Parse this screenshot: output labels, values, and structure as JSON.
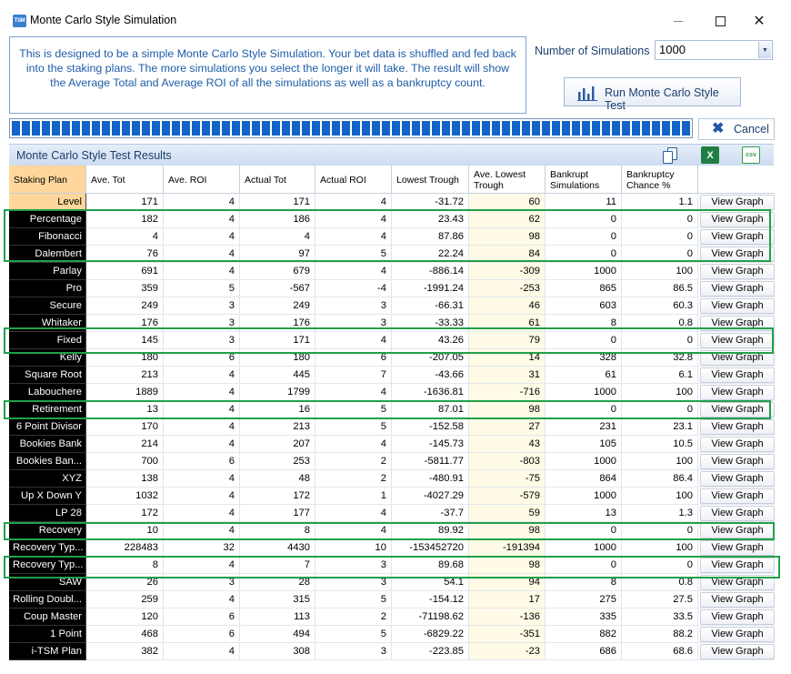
{
  "window": {
    "title": "Monte Carlo Style Simulation",
    "app_icon_text": "TSM",
    "minimize_icon": "minimize-icon",
    "maximize_icon": "maximize-icon",
    "close_glyph": "✕"
  },
  "description": "This is designed to be a simple Monte Carlo Style Simulation. Your bet data is shuffled and fed back into the staking plans. The more simulations you select the longer it will take.  The result will show the Average Total and Average ROI of all the simulations as well as a bankruptcy count.",
  "simulations": {
    "label": "Number of Simulations",
    "value": "1000",
    "arrow_glyph": "▼"
  },
  "run_button": {
    "label": "Run Monte Carlo Style Test",
    "icon": "bar-chart-icon"
  },
  "progress": {
    "fraction": 1.0
  },
  "cancel_button": {
    "label": "Cancel",
    "glyph": "✖"
  },
  "results": {
    "title": "Monte Carlo Style Test Results",
    "icons": [
      "copy-icon",
      "excel-export-icon",
      "csv-export-icon"
    ],
    "excel_glyph": "X",
    "csv_glyph": "csv"
  },
  "columns": [
    "Staking Plan",
    "Ave. Tot",
    "Ave. ROI",
    "Actual Tot",
    "Actual ROI",
    "Lowest Trough",
    "Ave. Lowest Trough",
    "Bankrupt Simulations",
    "Bankruptcy Chance %",
    ""
  ],
  "view_graph_label": "View Graph",
  "rows": [
    [
      "Level",
      "171",
      "4",
      "171",
      "4",
      "-31.72",
      "60",
      "11",
      "1.1"
    ],
    [
      "Percentage",
      "182",
      "4",
      "186",
      "4",
      "23.43",
      "62",
      "0",
      "0"
    ],
    [
      "Fibonacci",
      "4",
      "4",
      "4",
      "4",
      "87.86",
      "98",
      "0",
      "0"
    ],
    [
      "Dalembert",
      "76",
      "4",
      "97",
      "5",
      "22.24",
      "84",
      "0",
      "0"
    ],
    [
      "Parlay",
      "691",
      "4",
      "679",
      "4",
      "-886.14",
      "-309",
      "1000",
      "100"
    ],
    [
      "Pro",
      "359",
      "5",
      "-567",
      "-4",
      "-1991.24",
      "-253",
      "865",
      "86.5"
    ],
    [
      "Secure",
      "249",
      "3",
      "249",
      "3",
      "-66.31",
      "46",
      "603",
      "60.3"
    ],
    [
      "Whitaker",
      "176",
      "3",
      "176",
      "3",
      "-33.33",
      "61",
      "8",
      "0.8"
    ],
    [
      "Fixed",
      "145",
      "3",
      "171",
      "4",
      "43.26",
      "79",
      "0",
      "0"
    ],
    [
      "Kelly",
      "180",
      "6",
      "180",
      "6",
      "-207.05",
      "14",
      "328",
      "32.8"
    ],
    [
      "Square Root",
      "213",
      "4",
      "445",
      "7",
      "-43.66",
      "31",
      "61",
      "6.1"
    ],
    [
      "Labouchere",
      "1889",
      "4",
      "1799",
      "4",
      "-1636.81",
      "-716",
      "1000",
      "100"
    ],
    [
      "Retirement",
      "13",
      "4",
      "16",
      "5",
      "87.01",
      "98",
      "0",
      "0"
    ],
    [
      "6 Point Divisor",
      "170",
      "4",
      "213",
      "5",
      "-152.58",
      "27",
      "231",
      "23.1"
    ],
    [
      "Bookies Bank",
      "214",
      "4",
      "207",
      "4",
      "-145.73",
      "43",
      "105",
      "10.5"
    ],
    [
      "Bookies Ban...",
      "700",
      "6",
      "253",
      "2",
      "-5811.77",
      "-803",
      "1000",
      "100"
    ],
    [
      "XYZ",
      "138",
      "4",
      "48",
      "2",
      "-480.91",
      "-75",
      "864",
      "86.4"
    ],
    [
      "Up X Down Y",
      "1032",
      "4",
      "172",
      "1",
      "-4027.29",
      "-579",
      "1000",
      "100"
    ],
    [
      "LP 28",
      "172",
      "4",
      "177",
      "4",
      "-37.7",
      "59",
      "13",
      "1.3"
    ],
    [
      "Recovery",
      "10",
      "4",
      "8",
      "4",
      "89.92",
      "98",
      "0",
      "0"
    ],
    [
      "Recovery Typ...",
      "228483",
      "32",
      "4430",
      "10",
      "-153452720",
      "-191394",
      "1000",
      "100"
    ],
    [
      "Recovery Typ...",
      "8",
      "4",
      "7",
      "3",
      "89.68",
      "98",
      "0",
      "0"
    ],
    [
      "SAW",
      "26",
      "3",
      "28",
      "3",
      "54.1",
      "94",
      "8",
      "0.8"
    ],
    [
      "Rolling Doubl...",
      "259",
      "4",
      "315",
      "5",
      "-154.12",
      "17",
      "275",
      "27.5"
    ],
    [
      "Coup Master",
      "120",
      "6",
      "113",
      "2",
      "-71198.62",
      "-136",
      "335",
      "33.5"
    ],
    [
      "1 Point",
      "468",
      "6",
      "494",
      "5",
      "-6829.22",
      "-351",
      "882",
      "88.2"
    ],
    [
      "i-TSM Plan",
      "382",
      "4",
      "308",
      "3",
      "-223.85",
      "-23",
      "686",
      "68.6"
    ]
  ],
  "colors": {
    "highlight_border": "#21a04a",
    "plan_cell_bg": "#000000",
    "header_first_col_bg": "#ffd79c",
    "progress_fill": "#1463c9"
  }
}
